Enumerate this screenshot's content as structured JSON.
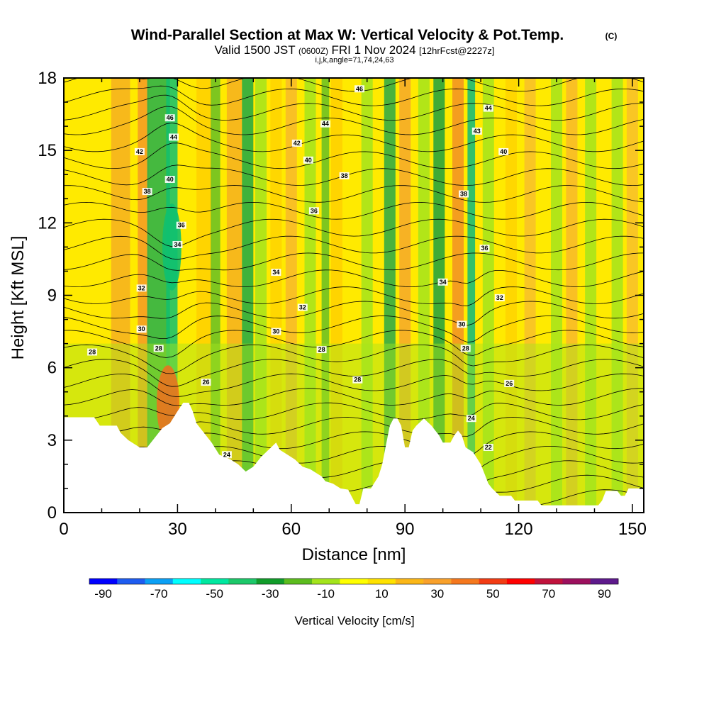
{
  "chart_data": {
    "type": "heatmap",
    "title": "Wind-Parallel Section at Max W: Vertical Velocity & Pot.Temp.",
    "title_mark": "(C)",
    "subtitle_main": "Valid 1500 JST",
    "subtitle_utc": "(0600Z)",
    "subtitle_date": "FRI 1 Nov 2024",
    "subtitle_fcst": "[12hrFcst@2227z]",
    "subtitle_params": "i,j,k,angle=71,74,24,63",
    "xlabel": "Distance [nm]",
    "ylabel": "Height [Kft MSL]",
    "xlim": [
      0,
      153
    ],
    "ylim": [
      0,
      18
    ],
    "x_ticks": [
      "0",
      "30",
      "60",
      "90",
      "120",
      "150"
    ],
    "y_ticks": [
      "0",
      "3",
      "6",
      "9",
      "12",
      "15",
      "18"
    ],
    "colorbar": {
      "label": "Vertical Velocity [cm/s]",
      "tick_labels": [
        "-90",
        "-70",
        "-50",
        "-30",
        "-10",
        "10",
        "30",
        "50",
        "70",
        "90"
      ],
      "colors": [
        "#0000ff",
        "#1e5cf0",
        "#0ba0f5",
        "#00ffff",
        "#00e8a0",
        "#1cc86a",
        "#119c2a",
        "#5cbc1e",
        "#a4e41c",
        "#ffff00",
        "#ffe200",
        "#fbb717",
        "#f9a12b",
        "#f5781e",
        "#f23c14",
        "#ff0000",
        "#c0123c",
        "#9c105e",
        "#5e1a8c"
      ]
    },
    "contours": {
      "variable": "Potential temperature",
      "labels": [
        {
          "text": "46",
          "x": 28,
          "y": 16.35
        },
        {
          "text": "44",
          "x": 29,
          "y": 15.55
        },
        {
          "text": "42",
          "x": 20,
          "y": 14.95
        },
        {
          "text": "40",
          "x": 28,
          "y": 13.8
        },
        {
          "text": "38",
          "x": 22,
          "y": 13.3
        },
        {
          "text": "36",
          "x": 31,
          "y": 11.9
        },
        {
          "text": "34",
          "x": 30,
          "y": 11.1
        },
        {
          "text": "32",
          "x": 20.5,
          "y": 9.3
        },
        {
          "text": "30",
          "x": 20.5,
          "y": 7.6
        },
        {
          "text": "28",
          "x": 25,
          "y": 6.8
        },
        {
          "text": "28",
          "x": 7.5,
          "y": 6.65
        },
        {
          "text": "26",
          "x": 37.5,
          "y": 5.4
        },
        {
          "text": "24",
          "x": 43,
          "y": 2.4
        },
        {
          "text": "46",
          "x": 78,
          "y": 17.55
        },
        {
          "text": "44",
          "x": 69,
          "y": 16.1
        },
        {
          "text": "42",
          "x": 61.5,
          "y": 15.3
        },
        {
          "text": "40",
          "x": 64.5,
          "y": 14.6
        },
        {
          "text": "38",
          "x": 74,
          "y": 13.95
        },
        {
          "text": "36",
          "x": 66,
          "y": 12.5
        },
        {
          "text": "34",
          "x": 56,
          "y": 9.95
        },
        {
          "text": "32",
          "x": 63,
          "y": 8.5
        },
        {
          "text": "30",
          "x": 56,
          "y": 7.5
        },
        {
          "text": "28",
          "x": 68,
          "y": 6.75
        },
        {
          "text": "28",
          "x": 77.5,
          "y": 5.5
        },
        {
          "text": "44",
          "x": 112,
          "y": 16.75
        },
        {
          "text": "43",
          "x": 109,
          "y": 15.8
        },
        {
          "text": "40",
          "x": 116,
          "y": 14.95
        },
        {
          "text": "38",
          "x": 105.5,
          "y": 13.2
        },
        {
          "text": "36",
          "x": 111,
          "y": 10.95
        },
        {
          "text": "34",
          "x": 100,
          "y": 9.55
        },
        {
          "text": "32",
          "x": 115,
          "y": 8.9
        },
        {
          "text": "30",
          "x": 105,
          "y": 7.8
        },
        {
          "text": "28",
          "x": 106,
          "y": 6.8
        },
        {
          "text": "26",
          "x": 117.5,
          "y": 5.35
        },
        {
          "text": "24",
          "x": 107.5,
          "y": 3.9
        },
        {
          "text": "22",
          "x": 112,
          "y": 2.7
        }
      ]
    }
  }
}
